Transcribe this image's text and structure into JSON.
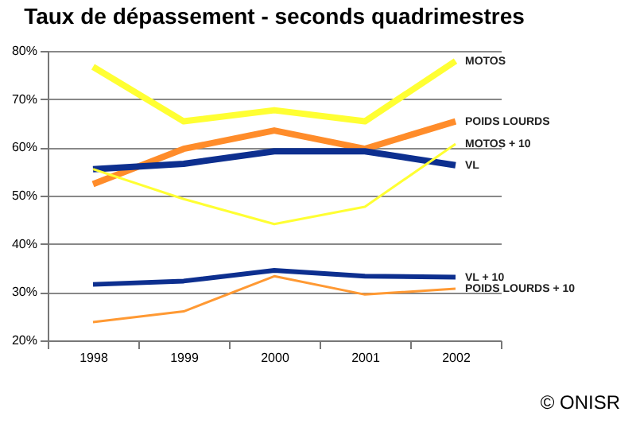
{
  "chart_data": {
    "type": "line",
    "title": "Taux de dépassement - seconds quadrimestres",
    "categories": [
      "1998",
      "1999",
      "2000",
      "2001",
      "2002"
    ],
    "series": [
      {
        "name": "MOTOS",
        "color": "#ffff33",
        "values": [
          76.7,
          65.4,
          67.7,
          65.4,
          77.9
        ]
      },
      {
        "name": "POIDS LOURDS",
        "color": "#ff8c2a",
        "values": [
          52.4,
          59.7,
          63.5,
          59.7,
          65.4
        ]
      },
      {
        "name": "VL",
        "color": "#0d2f8f",
        "values": [
          55.5,
          56.6,
          59.2,
          59.2,
          56.3
        ]
      },
      {
        "name": "MOTOS + 10",
        "color": "#ffff33",
        "values": [
          55.5,
          49.3,
          44.1,
          47.7,
          60.7
        ]
      },
      {
        "name": "VL + 10",
        "color": "#0d2f8f",
        "values": [
          31.6,
          32.3,
          34.5,
          33.3,
          33.1
        ]
      },
      {
        "name": "POIDS LOURDS + 10",
        "color": "#ff9933",
        "values": [
          23.8,
          26.0,
          33.3,
          29.5,
          30.7
        ]
      }
    ],
    "ylim": [
      20,
      80
    ],
    "yticks": [
      {
        "value": 20,
        "label": "20%"
      },
      {
        "value": 30,
        "label": "30%"
      },
      {
        "value": 40,
        "label": "40%"
      },
      {
        "value": 50,
        "label": "50%"
      },
      {
        "value": 60,
        "label": "60%"
      },
      {
        "value": 70,
        "label": "70%"
      },
      {
        "value": 80,
        "label": "80%"
      }
    ],
    "grid": "y",
    "annotations": [
      "© ONISR"
    ]
  }
}
